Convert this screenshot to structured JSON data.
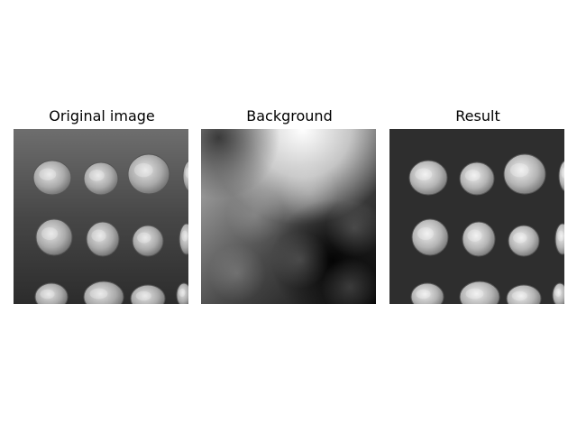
{
  "figure": {
    "panels": [
      {
        "title": "Original image",
        "image": "coins-grayscale-photo"
      },
      {
        "title": "Background",
        "image": "estimated-background-gradient"
      },
      {
        "title": "Result",
        "image": "background-subtracted-coins"
      }
    ]
  }
}
